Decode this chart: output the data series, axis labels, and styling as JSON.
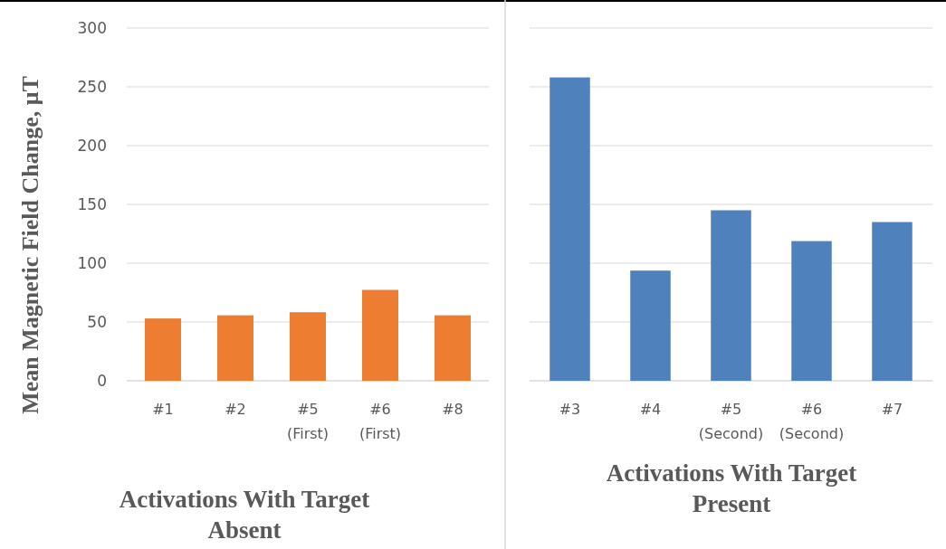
{
  "chart_data": [
    {
      "type": "bar",
      "title": "Activations With Target Absent",
      "ylabel": "Mean Magnetic Field Change, μT",
      "categories": [
        "#1",
        "#2",
        "#5\n(First)",
        "#6\n(First)",
        "#8"
      ],
      "values": [
        53,
        55.7,
        58.3,
        77.3,
        55.7
      ],
      "color": "#ed7d31",
      "ylim": [
        0,
        300
      ],
      "yticks": [
        0,
        50,
        100,
        150,
        200,
        250,
        300
      ],
      "grid": "y"
    },
    {
      "type": "bar",
      "title": "Activations With Target Present",
      "categories": [
        "#3",
        "#4",
        "#5\n(Second)",
        "#6\n(Second)",
        "#7"
      ],
      "values": [
        258,
        93.7,
        145,
        118.8,
        135
      ],
      "color": "#4f81bd",
      "ylim": [
        0,
        300
      ],
      "yticks": [
        0,
        50,
        100,
        150,
        200,
        250,
        300
      ],
      "grid": "y",
      "tick_labels": "x"
    }
  ]
}
